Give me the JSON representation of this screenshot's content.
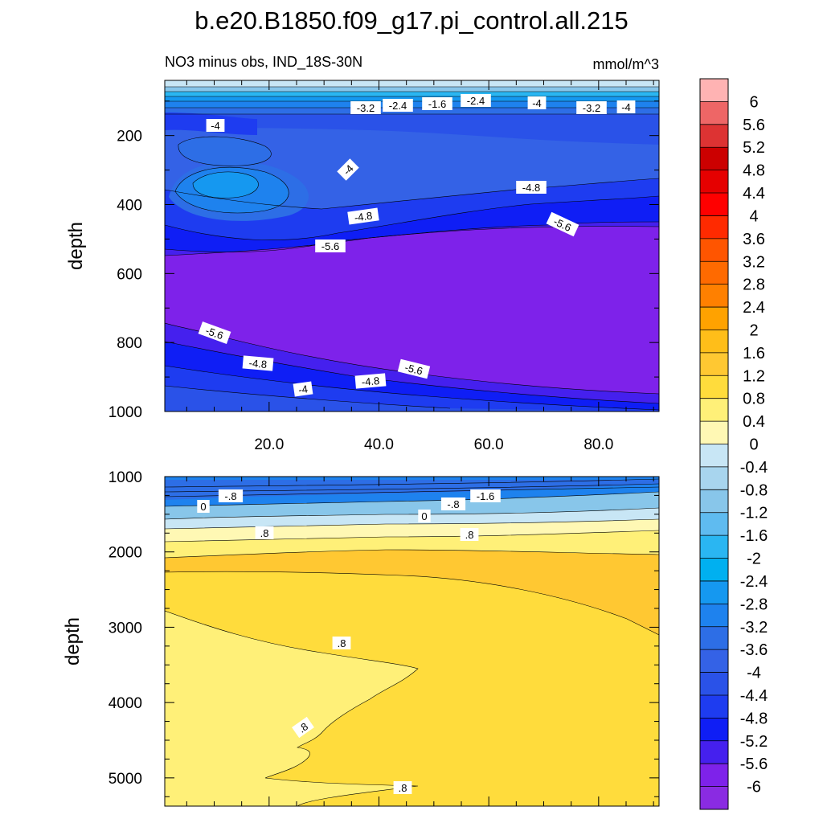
{
  "chart_data": [
    {
      "type": "contour",
      "title": "b.e20.B1850.f09_g17.pi_control.all.215",
      "left_label": "NO3 minus obs, IND_18S-30N",
      "right_label": "mmol/m^3",
      "ylabel": "depth",
      "xlabel": "",
      "y_range": [
        1000,
        40
      ],
      "x_range": [
        1,
        91
      ],
      "x_ticks": [
        "20.0",
        "40.0",
        "60.0",
        "80.0"
      ],
      "y_ticks": [
        "200",
        "400",
        "600",
        "800",
        "1000"
      ],
      "contour_labels": [
        "-4",
        "-3.2",
        "-2.4",
        "-1.6",
        "-2.4",
        "-4",
        "-3.2",
        "-4",
        "-4",
        "-4.8",
        "-4.8",
        "-5.6",
        "-5.6",
        "-5.6",
        "-4.8",
        "-5.6",
        "-4.8",
        "-4"
      ]
    },
    {
      "type": "contour",
      "ylabel": "depth",
      "y_range": [
        1000,
        5375
      ],
      "y_ticks": [
        "1000",
        "2000",
        "3000",
        "4000",
        "5000"
      ],
      "contour_labels": [
        "-.8",
        "0",
        "-1.6",
        "-.8",
        "0",
        ".8",
        ".8",
        ".8",
        ".8",
        ".8"
      ]
    }
  ],
  "colorbar": {
    "labels": [
      "6",
      "5.6",
      "5.2",
      "4.8",
      "4.4",
      "4",
      "3.6",
      "3.2",
      "2.8",
      "2.4",
      "2",
      "1.6",
      "1.2",
      "0.8",
      "0.4",
      "0",
      "-0.4",
      "-0.8",
      "-1.2",
      "-1.6",
      "-2",
      "-2.4",
      "-2.8",
      "-3.2",
      "-3.6",
      "-4",
      "-4.4",
      "-4.8",
      "-5.2",
      "-5.6",
      "-6"
    ],
    "colors": [
      "#FFB3B3",
      "#EE6666",
      "#DD3333",
      "#CC0000",
      "#E50000",
      "#FF0000",
      "#FF2A00",
      "#FF5500",
      "#FF6A00",
      "#FF8000",
      "#FFA200",
      "#FFBE19",
      "#FFC832",
      "#FFDC3C",
      "#FFF078",
      "#FFF8B4",
      "#C8E6F5",
      "#A8D5EE",
      "#88C6EA",
      "#5FBBF0",
      "#2AB6F2",
      "#00B0F0",
      "#1598F0",
      "#1E82EE",
      "#2D6EE6",
      "#3462E6",
      "#2A52E8",
      "#1E3CF0",
      "#0F1EF5",
      "#4520EE",
      "#7E22EA",
      "#8A2BE2"
    ]
  }
}
